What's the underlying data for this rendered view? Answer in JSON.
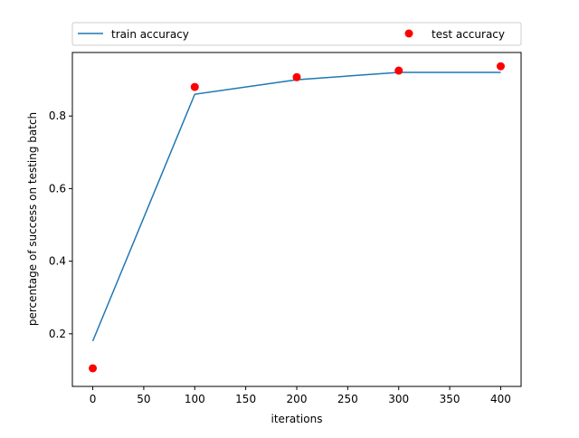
{
  "chart_data": {
    "type": "line",
    "title": "",
    "xlabel": "iterations",
    "ylabel": "percentage of success on testing batch",
    "xlim": [
      -20,
      420
    ],
    "ylim": [
      0.055,
      0.975
    ],
    "x_ticks": [
      0,
      50,
      100,
      150,
      200,
      250,
      300,
      350,
      400
    ],
    "y_ticks": [
      0.2,
      0.4,
      0.6,
      0.8
    ],
    "grid": false,
    "legend_position": "top",
    "series": [
      {
        "name": "train accuracy",
        "kind": "line",
        "color": "#1f77b4",
        "x": [
          0,
          100,
          200,
          300,
          400
        ],
        "y": [
          0.18,
          0.86,
          0.9,
          0.92,
          0.92
        ]
      },
      {
        "name": "test accuracy",
        "kind": "scatter",
        "color": "#ff0000",
        "x": [
          0,
          100,
          200,
          300,
          400
        ],
        "y": [
          0.105,
          0.88,
          0.907,
          0.925,
          0.937
        ]
      }
    ]
  }
}
